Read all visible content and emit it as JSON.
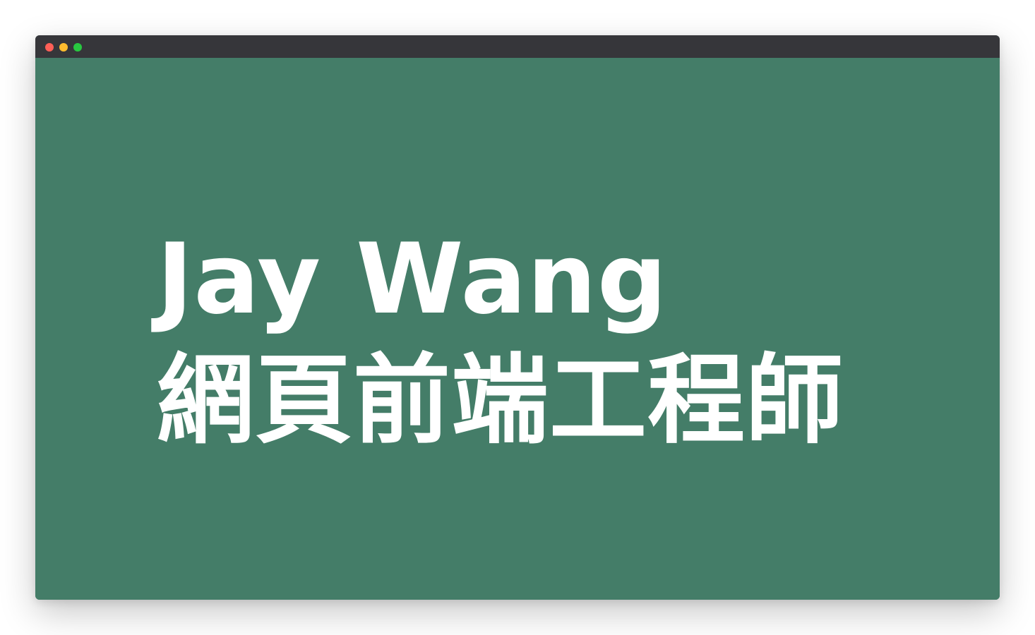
{
  "window": {
    "controls": [
      {
        "name": "close",
        "color": "#ff5f57"
      },
      {
        "name": "minimize",
        "color": "#febc2e"
      },
      {
        "name": "zoom",
        "color": "#28c840"
      }
    ],
    "titlebar_color": "#36363a"
  },
  "page": {
    "background_color": "#447d68",
    "text_color": "#ffffff",
    "name": "Jay Wang",
    "role": "網頁前端工程師"
  }
}
